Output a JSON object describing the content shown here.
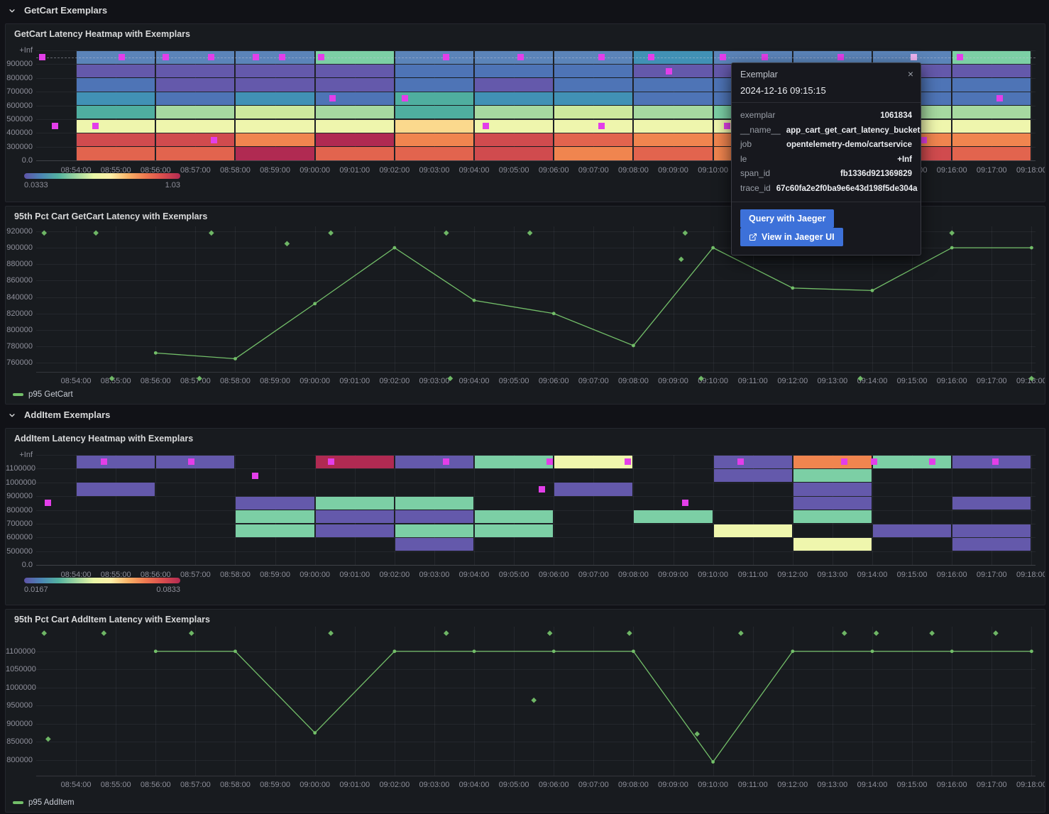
{
  "sections": [
    {
      "label": "GetCart Exemplars"
    },
    {
      "label": "AddItem Exemplars"
    }
  ],
  "tooltip": {
    "title": "Exemplar",
    "close": "×",
    "timestamp": "2024-12-16 09:15:15",
    "rows": [
      {
        "label": "exemplar",
        "value": "1061834"
      },
      {
        "label": "__name__",
        "value": "app_cart_get_cart_latency_bucket"
      },
      {
        "label": "job",
        "value": "opentelemetry-demo/cartservice"
      },
      {
        "label": "le",
        "value": "+Inf"
      },
      {
        "label": "span_id",
        "value": "fb1336d921369829"
      },
      {
        "label": "trace_id",
        "value": "67c60fa2e2f0ba9e6e43d198f5de304a"
      }
    ],
    "buttons": [
      {
        "label": "Query with Jaeger",
        "icon": "none"
      },
      {
        "label": "View in Jaeger UI",
        "icon": "external-link-icon"
      }
    ]
  },
  "colors": {
    "exemplar": "#e33ee9",
    "exemplar_highlight": "#efb3f1",
    "series_green": "#73bf69",
    "button_blue": "#3d71d9"
  },
  "palette": {
    "P": "#6459ab",
    "SB": "#5b84b9",
    "B": "#4e74b6",
    "TB": "#4191b5",
    "T": "#4fae9f",
    "G": "#7ccfa5",
    "PG": "#a6d9a0",
    "YG": "#cde99d",
    "PY": "#eff6ad",
    "PE": "#fbd98d",
    "O": "#f0854f",
    "RO": "#e2644e",
    "R": "#d04b4e",
    "C": "#b02a52"
  },
  "time_axis": {
    "t_min": -1,
    "t_max": 24.1,
    "tick_labels": [
      "08:54:00",
      "08:55:00",
      "08:56:00",
      "08:57:00",
      "08:58:00",
      "08:59:00",
      "09:00:00",
      "09:01:00",
      "09:02:00",
      "09:03:00",
      "09:04:00",
      "09:05:00",
      "09:06:00",
      "09:07:00",
      "09:08:00",
      "09:09:00",
      "09:10:00",
      "09:11:00",
      "09:12:00",
      "09:13:00",
      "09:14:00",
      "09:15:00",
      "09:16:00",
      "09:17:00",
      "09:18:00"
    ]
  },
  "chart_data": [
    {
      "type": "heatmap",
      "title": "GetCart Latency Heatmap with Exemplars",
      "y_axis_labels": [
        "+Inf",
        "900000",
        "800000",
        "700000",
        "600000",
        "500000",
        "400000",
        "300000",
        "0.0"
      ],
      "bucket_minutes": 2,
      "columns": [
        [
          "SB",
          "P",
          "B",
          "TB",
          "T",
          "PY",
          "R",
          "RO"
        ],
        [
          "SB",
          "P",
          "P",
          "B",
          "PG",
          "PY",
          "R",
          "RO"
        ],
        [
          "SB",
          "P",
          "P",
          "TB",
          "YG",
          "PY",
          "O",
          "C"
        ],
        [
          "G",
          "P",
          "P",
          "B",
          "PG",
          "PY",
          "C",
          "RO"
        ],
        [
          "SB",
          "B",
          "B",
          "T",
          "T",
          "PE",
          "O",
          "RO"
        ],
        [
          "SB",
          "B",
          "P",
          "TB",
          "PG",
          "PY",
          "R",
          "R"
        ],
        [
          "SB",
          "B",
          "B",
          "TB",
          "YG",
          "PY",
          "RO",
          "O"
        ],
        [
          "TB",
          "P",
          "B",
          "B",
          "PG",
          "PY",
          "O",
          "RO"
        ],
        [
          "SB",
          "P",
          "B",
          "B",
          "G",
          "PY",
          "O",
          "O"
        ],
        [
          "SB",
          "P",
          "B",
          "TB",
          "G",
          "PY",
          "O",
          "RO"
        ],
        [
          "SB",
          "P",
          "B",
          "B",
          "PG",
          "PY",
          "O",
          "R"
        ],
        [
          "G",
          "P",
          "B",
          "B",
          "PG",
          "PY",
          "O",
          "RO"
        ]
      ],
      "exemplars": [
        {
          "t": -0.85,
          "b": 0
        },
        {
          "t": -0.53,
          "b": 5
        },
        {
          "t": 0.48,
          "b": 5
        },
        {
          "t": 1.15,
          "b": 0
        },
        {
          "t": 2.25,
          "b": 0
        },
        {
          "t": 3.4,
          "b": 0
        },
        {
          "t": 3.46,
          "b": 6
        },
        {
          "t": 4.52,
          "b": 0
        },
        {
          "t": 5.18,
          "b": 0
        },
        {
          "t": 6.15,
          "b": 0
        },
        {
          "t": 6.45,
          "b": 3
        },
        {
          "t": 8.26,
          "b": 3
        },
        {
          "t": 9.3,
          "b": 0
        },
        {
          "t": 10.3,
          "b": 5
        },
        {
          "t": 11.17,
          "b": 0
        },
        {
          "t": 13.2,
          "b": 0
        },
        {
          "t": 13.2,
          "b": 5
        },
        {
          "t": 14.45,
          "b": 0
        },
        {
          "t": 14.9,
          "b": 1
        },
        {
          "t": 16.25,
          "b": 0
        },
        {
          "t": 16.35,
          "b": 5
        },
        {
          "t": 17.3,
          "b": 0
        },
        {
          "t": 19.2,
          "b": 0
        },
        {
          "t": 21.3,
          "b": 6
        },
        {
          "t": 22.2,
          "b": 0
        },
        {
          "t": 23.2,
          "b": 3
        }
      ],
      "highlighted_exemplar": {
        "t": 21.05,
        "b": 0
      },
      "dashed_exemplar_line_band": 0,
      "color_scale": {
        "min_label": "0.0333",
        "max_label": "1.03"
      }
    },
    {
      "type": "line",
      "title": "95th Pct Cart GetCart Latency with Exemplars",
      "legend": "p95 GetCart",
      "y_ticks": [
        920000,
        900000,
        880000,
        860000,
        840000,
        820000,
        800000,
        780000,
        760000
      ],
      "y_range": [
        749000,
        926000
      ],
      "x_minutes": [
        2,
        4,
        6,
        8,
        10,
        12,
        14,
        16,
        18,
        20,
        22,
        24
      ],
      "values": [
        772000,
        765000,
        832000,
        900000,
        836000,
        820000,
        781000,
        900000,
        851000,
        848000,
        900000,
        900000
      ],
      "exemplar_diamonds": [
        {
          "t": -0.8,
          "v": 918000
        },
        {
          "t": 0.5,
          "v": 918000
        },
        {
          "t": 3.4,
          "v": 918000
        },
        {
          "t": 6.4,
          "v": 918000
        },
        {
          "t": 9.3,
          "v": 918000
        },
        {
          "t": 11.4,
          "v": 918000
        },
        {
          "t": 15.3,
          "v": 918000
        },
        {
          "t": 22.0,
          "v": 918000
        },
        {
          "t": 5.3,
          "v": 905000
        },
        {
          "t": 15.2,
          "v": 886000
        },
        {
          "t": 0.9,
          "v": 741000
        },
        {
          "t": 3.1,
          "v": 741000
        },
        {
          "t": 9.4,
          "v": 741000
        },
        {
          "t": 15.7,
          "v": 741000
        },
        {
          "t": 19.7,
          "v": 741000
        },
        {
          "t": 24.0,
          "v": 741000
        }
      ]
    },
    {
      "type": "heatmap",
      "title": "AddItem Latency Heatmap with Exemplars",
      "y_axis_labels": [
        "+Inf",
        "1100000",
        "1000000",
        "900000",
        "800000",
        "700000",
        "600000",
        "500000",
        "0.0"
      ],
      "bucket_minutes": 2,
      "cells": [
        {
          "c": 0,
          "b": 0,
          "k": "P"
        },
        {
          "c": 0,
          "b": 2,
          "k": "P"
        },
        {
          "c": 1,
          "b": 0,
          "k": "P"
        },
        {
          "c": 2,
          "b": 3,
          "k": "P"
        },
        {
          "c": 2,
          "b": 4,
          "k": "G"
        },
        {
          "c": 2,
          "b": 5,
          "k": "G"
        },
        {
          "c": 3,
          "b": 0,
          "k": "C"
        },
        {
          "c": 3,
          "b": 3,
          "k": "G"
        },
        {
          "c": 3,
          "b": 4,
          "k": "P"
        },
        {
          "c": 3,
          "b": 5,
          "k": "P"
        },
        {
          "c": 4,
          "b": 0,
          "k": "P"
        },
        {
          "c": 4,
          "b": 3,
          "k": "G"
        },
        {
          "c": 4,
          "b": 4,
          "k": "P"
        },
        {
          "c": 4,
          "b": 5,
          "k": "G"
        },
        {
          "c": 4,
          "b": 6,
          "k": "P"
        },
        {
          "c": 5,
          "b": 0,
          "k": "G"
        },
        {
          "c": 5,
          "b": 4,
          "k": "G"
        },
        {
          "c": 5,
          "b": 5,
          "k": "G"
        },
        {
          "c": 6,
          "b": 0,
          "k": "PY"
        },
        {
          "c": 6,
          "b": 2,
          "k": "P"
        },
        {
          "c": 7,
          "b": 4,
          "k": "G"
        },
        {
          "c": 8,
          "b": 0,
          "k": "P"
        },
        {
          "c": 8,
          "b": 1,
          "k": "P"
        },
        {
          "c": 8,
          "b": 5,
          "k": "PY"
        },
        {
          "c": 9,
          "b": 0,
          "k": "O"
        },
        {
          "c": 9,
          "b": 1,
          "k": "G"
        },
        {
          "c": 9,
          "b": 2,
          "k": "P"
        },
        {
          "c": 9,
          "b": 3,
          "k": "P"
        },
        {
          "c": 9,
          "b": 4,
          "k": "G"
        },
        {
          "c": 9,
          "b": 6,
          "k": "PY"
        },
        {
          "c": 10,
          "b": 0,
          "k": "G"
        },
        {
          "c": 10,
          "b": 5,
          "k": "P"
        },
        {
          "c": 11,
          "b": 0,
          "k": "P"
        },
        {
          "c": 11,
          "b": 3,
          "k": "P"
        },
        {
          "c": 11,
          "b": 5,
          "k": "P"
        },
        {
          "c": 11,
          "b": 6,
          "k": "P"
        }
      ],
      "exemplars": [
        {
          "t": -0.7,
          "b": 3
        },
        {
          "t": 0.7,
          "b": 0
        },
        {
          "t": 2.9,
          "b": 0
        },
        {
          "t": 4.5,
          "b": 1
        },
        {
          "t": 6.4,
          "b": 0
        },
        {
          "t": 9.3,
          "b": 0
        },
        {
          "t": 11.7,
          "b": 2
        },
        {
          "t": 11.9,
          "b": 0
        },
        {
          "t": 13.85,
          "b": 0
        },
        {
          "t": 15.3,
          "b": 3
        },
        {
          "t": 16.7,
          "b": 0
        },
        {
          "t": 19.3,
          "b": 0
        },
        {
          "t": 20.05,
          "b": 0
        },
        {
          "t": 21.5,
          "b": 0
        },
        {
          "t": 23.1,
          "b": 0
        }
      ],
      "color_scale": {
        "min_label": "0.0167",
        "max_label": "0.0833"
      }
    },
    {
      "type": "line",
      "title": "95th Pct Cart AddItem Latency with Exemplars",
      "legend": "p95 AddItem",
      "y_ticks": [
        1100000,
        1050000,
        1000000,
        950000,
        900000,
        850000,
        800000
      ],
      "y_range": [
        757000,
        1168000
      ],
      "x_minutes": [
        2,
        4,
        6,
        8,
        10,
        12,
        14,
        16,
        18,
        20,
        22,
        24
      ],
      "values": [
        1100000,
        1100000,
        875000,
        1100000,
        1100000,
        1100000,
        1100000,
        795000,
        1100000,
        1100000,
        1100000,
        1100000
      ],
      "exemplar_diamonds": [
        {
          "t": -0.8,
          "v": 1150000
        },
        {
          "t": 0.7,
          "v": 1150000
        },
        {
          "t": 2.9,
          "v": 1150000
        },
        {
          "t": 6.4,
          "v": 1150000
        },
        {
          "t": 9.3,
          "v": 1150000
        },
        {
          "t": 11.9,
          "v": 1150000
        },
        {
          "t": 13.9,
          "v": 1150000
        },
        {
          "t": 16.7,
          "v": 1150000
        },
        {
          "t": 19.3,
          "v": 1150000
        },
        {
          "t": 20.1,
          "v": 1150000
        },
        {
          "t": 21.5,
          "v": 1150000
        },
        {
          "t": 23.1,
          "v": 1150000
        },
        {
          "t": -0.7,
          "v": 858000
        },
        {
          "t": 11.5,
          "v": 965000
        },
        {
          "t": 15.6,
          "v": 872000
        }
      ]
    }
  ]
}
